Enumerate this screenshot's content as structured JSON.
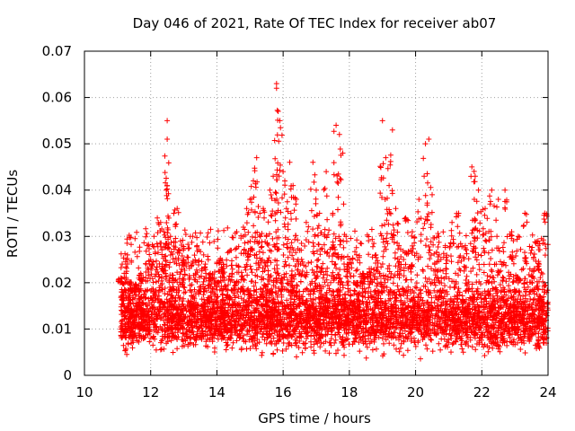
{
  "chart_data": {
    "type": "scatter",
    "title": "Day 046 of 2021, Rate Of TEC Index for receiver ab07",
    "xlabel": "GPS time / hours",
    "ylabel": "ROTI / TECUs",
    "xlim": [
      10,
      24
    ],
    "ylim": [
      0,
      0.07
    ],
    "x_ticks": [
      10,
      12,
      14,
      16,
      18,
      20,
      22,
      24
    ],
    "y_ticks": [
      0,
      0.01,
      0.02,
      0.03,
      0.04,
      0.05,
      0.06,
      0.07
    ],
    "x_tick_labels": [
      "10",
      "12",
      "14",
      "16",
      "18",
      "20",
      "22",
      "24"
    ],
    "y_tick_labels": [
      "0",
      "0.01",
      "0.02",
      "0.03",
      "0.04",
      "0.05",
      "0.06",
      "0.07"
    ],
    "grid": true,
    "marker": "plus",
    "color": "#ff0000",
    "series": [
      {
        "x": [
          11.1,
          11.2,
          11.3,
          11.5,
          11.7,
          11.9,
          12.0,
          12.1,
          12.2,
          12.3,
          12.4,
          12.5,
          12.5,
          12.5,
          12.6,
          12.7,
          12.8,
          12.9,
          13.0,
          13.2,
          13.4,
          13.6,
          13.8,
          14.0,
          14.1,
          14.2,
          14.4,
          14.6,
          14.8,
          14.9,
          15.0,
          15.1,
          15.2,
          15.3,
          15.4,
          15.5,
          15.6,
          15.7,
          15.8,
          15.8,
          15.85,
          15.9,
          16.0,
          16.1,
          16.2,
          16.3,
          16.4,
          16.5,
          16.7,
          16.9,
          17.0,
          17.1,
          17.3,
          17.5,
          17.6,
          17.7,
          17.8,
          17.9,
          18.0,
          18.2,
          18.4,
          18.6,
          18.8,
          19.0,
          19.1,
          19.2,
          19.3,
          19.4,
          19.5,
          19.7,
          19.9,
          20.1,
          20.3,
          20.4,
          20.5,
          20.7,
          20.9,
          21.1,
          21.3,
          21.5,
          21.7,
          21.8,
          21.9,
          22.1,
          22.3,
          22.5,
          22.7,
          22.9,
          23.1,
          23.3,
          23.5,
          23.7,
          23.9
        ],
        "y": [
          0.021,
          0.015,
          0.026,
          0.018,
          0.022,
          0.028,
          0.025,
          0.03,
          0.034,
          0.033,
          0.031,
          0.055,
          0.051,
          0.041,
          0.03,
          0.035,
          0.036,
          0.029,
          0.025,
          0.03,
          0.028,
          0.026,
          0.022,
          0.02,
          0.025,
          0.024,
          0.027,
          0.031,
          0.032,
          0.036,
          0.038,
          0.042,
          0.047,
          0.035,
          0.036,
          0.03,
          0.04,
          0.043,
          0.063,
          0.062,
          0.057,
          0.055,
          0.044,
          0.036,
          0.046,
          0.041,
          0.038,
          0.027,
          0.033,
          0.046,
          0.04,
          0.035,
          0.044,
          0.035,
          0.054,
          0.052,
          0.048,
          0.03,
          0.025,
          0.02,
          0.022,
          0.023,
          0.026,
          0.055,
          0.047,
          0.041,
          0.053,
          0.036,
          0.028,
          0.034,
          0.031,
          0.038,
          0.05,
          0.051,
          0.039,
          0.03,
          0.028,
          0.033,
          0.035,
          0.028,
          0.045,
          0.043,
          0.04,
          0.036,
          0.04,
          0.038,
          0.04,
          0.031,
          0.03,
          0.035,
          0.027,
          0.029,
          0.035
        ]
      }
    ],
    "baseline_band": {
      "x_range": [
        11.1,
        24
      ],
      "y_range": [
        0.003,
        0.022
      ],
      "y_median": 0.011
    }
  }
}
